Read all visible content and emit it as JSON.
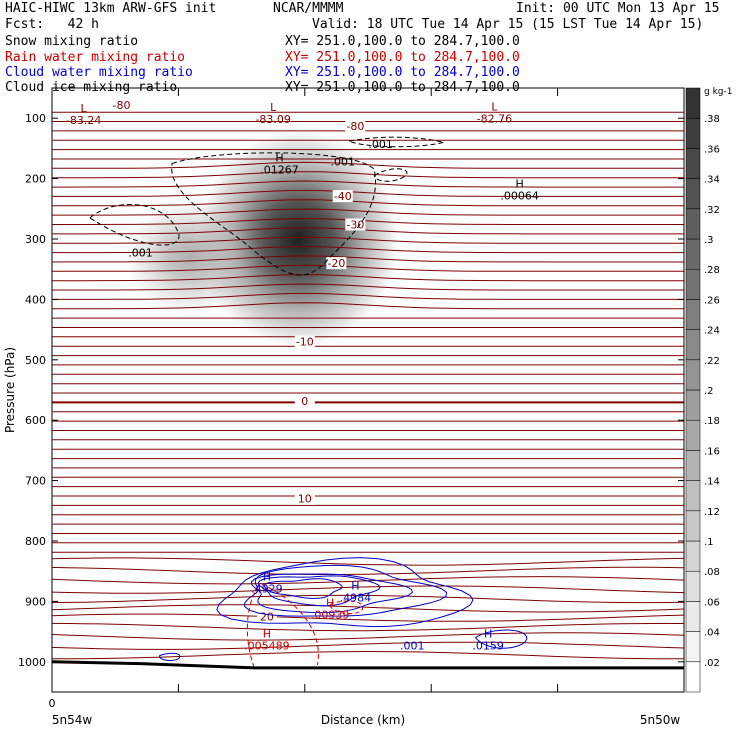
{
  "header": {
    "model": "HAIC-HIWC 13km ARW-GFS init",
    "org": "NCAR/MMMM",
    "init": "Init: 00 UTC Mon 13 Apr 15",
    "fcst": "Fcst:   42 h",
    "valid": "Valid: 18 UTC Tue 14 Apr 15 (15 LST Tue 14 Apr 15)"
  },
  "fields": [
    {
      "name": "Snow mixing ratio",
      "xy": "XY= 251.0,100.0 to 284.7,100.0",
      "color": "#000000"
    },
    {
      "name": "Rain water mixing ratio",
      "xy": "XY= 251.0,100.0 to 284.7,100.0",
      "color": "#cc0000"
    },
    {
      "name": "Cloud water mixing ratio",
      "xy": "XY= 251.0,100.0 to 284.7,100.0",
      "color": "#0000cc"
    },
    {
      "name": "Cloud ice mixing ratio",
      "xy": "XY= 251.0,100.0 to 284.7,100.0",
      "color": "#000000"
    }
  ],
  "chart_data": {
    "type": "heatmap",
    "ylabel": "Pressure (hPa)",
    "xlabel": "Distance (km)",
    "yticks": [
      100,
      200,
      300,
      400,
      500,
      600,
      700,
      800,
      900,
      1000
    ],
    "ylim": [
      50,
      1050
    ],
    "xlim": [
      0,
      5
    ],
    "x_origin_label": "0",
    "x_left_label": "5n54w",
    "x_right_label": "5n50w",
    "colorbar": {
      "unit": "g kg-1",
      "ticks": [
        ".02",
        ".04",
        ".06",
        ".08",
        ".1",
        ".12",
        ".14",
        ".16",
        ".18",
        ".2",
        ".22",
        ".24",
        ".26",
        ".28",
        ".3",
        ".32",
        ".34",
        ".36",
        ".38"
      ],
      "range": [
        0,
        0.4
      ]
    },
    "snow_blobs": [
      {
        "x": 1.95,
        "p": 300,
        "sx": 0.38,
        "sp": 85,
        "amp": 0.37
      },
      {
        "x": 1.1,
        "p": 330,
        "sx": 0.25,
        "sp": 45,
        "amp": 0.13
      }
    ],
    "temperature_contour_labels": [
      {
        "value": "-80",
        "x": 0.55,
        "p": 78
      },
      {
        "value": "-80",
        "x": 2.4,
        "p": 113
      },
      {
        "value": "-40",
        "x": 2.3,
        "p": 229
      },
      {
        "value": "-30",
        "x": 2.4,
        "p": 276
      },
      {
        "value": "-20",
        "x": 2.25,
        "p": 340
      },
      {
        "value": "-10",
        "x": 2.0,
        "p": 470
      },
      {
        "value": "0",
        "x": 2.0,
        "p": 568
      },
      {
        "value": "10",
        "x": 2.0,
        "p": 730
      },
      {
        "value": "20",
        "x": 1.7,
        "p": 925
      }
    ],
    "extrema": [
      {
        "kind": "L",
        "value": "-83.24",
        "x": 0.25,
        "p": 100,
        "color": "#800000"
      },
      {
        "kind": "L",
        "value": "-83.09",
        "x": 1.75,
        "p": 98,
        "color": "#800000"
      },
      {
        "kind": "L",
        "value": "-82.76",
        "x": 3.5,
        "p": 97,
        "color": "#800000"
      },
      {
        "kind": "H",
        "value": ".01267",
        "x": 1.8,
        "p": 182,
        "color": "#000000"
      },
      {
        "kind": "H",
        "value": ".00064",
        "x": 3.7,
        "p": 225,
        "color": "#000000"
      },
      {
        "kind": "H",
        "value": ".4929",
        "x": 1.7,
        "p": 875,
        "color": "#0000cc"
      },
      {
        "kind": "H",
        "value": ".4984",
        "x": 2.4,
        "p": 890,
        "color": "#0000cc"
      },
      {
        "kind": "H",
        "value": ".00939",
        "x": 2.2,
        "p": 918,
        "color": "#cc0000"
      },
      {
        "kind": "H",
        "value": ".005489",
        "x": 1.7,
        "p": 970,
        "color": "#cc0000"
      },
      {
        "kind": "H",
        "value": ".0159",
        "x": 3.45,
        "p": 970,
        "color": "#0000cc"
      }
    ],
    "contour_labels": [
      {
        "value": ".001",
        "x": 2.6,
        "p": 143,
        "color": "#000000"
      },
      {
        "value": ".001",
        "x": 2.3,
        "p": 172,
        "color": "#000000"
      },
      {
        "value": ".001",
        "x": 0.7,
        "p": 322,
        "color": "#000000"
      },
      {
        "value": ".001",
        "x": 2.85,
        "p": 973,
        "color": "#0000cc"
      }
    ]
  }
}
